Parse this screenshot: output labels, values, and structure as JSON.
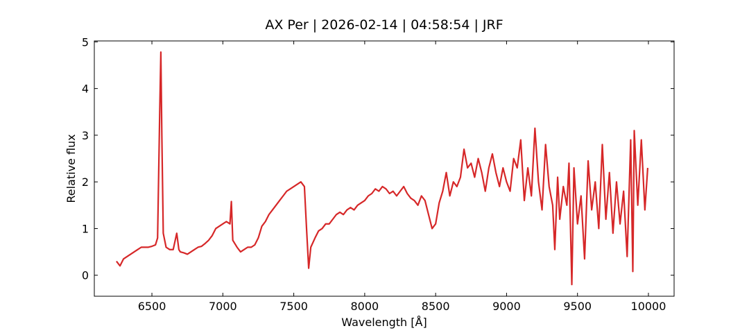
{
  "chart_data": {
    "type": "line",
    "title": "AX Per | 2026-02-14 | 04:58:54 | JRF",
    "x_label": "Wavelength [Å]",
    "y_label": "Relative flux",
    "xlim": [
      6094,
      10181
    ],
    "ylim": [
      -0.45,
      5.02
    ],
    "xticks": [
      6500,
      7000,
      7500,
      8000,
      8500,
      9000,
      9500,
      10000
    ],
    "yticks": [
      0,
      1,
      2,
      3,
      4,
      5
    ],
    "x": [
      6250,
      6275,
      6300,
      6325,
      6350,
      6375,
      6400,
      6425,
      6450,
      6475,
      6500,
      6525,
      6540,
      6555,
      6563,
      6570,
      6580,
      6600,
      6625,
      6650,
      6675,
      6690,
      6700,
      6725,
      6750,
      6775,
      6800,
      6825,
      6850,
      6875,
      6900,
      6925,
      6950,
      6975,
      7000,
      7025,
      7050,
      7060,
      7070,
      7100,
      7125,
      7150,
      7175,
      7200,
      7225,
      7250,
      7275,
      7300,
      7325,
      7350,
      7375,
      7400,
      7425,
      7450,
      7475,
      7500,
      7525,
      7550,
      7575,
      7590,
      7605,
      7620,
      7650,
      7675,
      7700,
      7725,
      7750,
      7775,
      7800,
      7825,
      7850,
      7875,
      7900,
      7925,
      7950,
      7975,
      8000,
      8025,
      8050,
      8075,
      8100,
      8125,
      8150,
      8175,
      8200,
      8225,
      8250,
      8275,
      8300,
      8325,
      8350,
      8375,
      8400,
      8425,
      8450,
      8475,
      8500,
      8525,
      8550,
      8575,
      8600,
      8625,
      8650,
      8675,
      8700,
      8725,
      8750,
      8775,
      8800,
      8825,
      8850,
      8875,
      8900,
      8925,
      8950,
      8975,
      9000,
      9025,
      9050,
      9075,
      9100,
      9125,
      9150,
      9175,
      9200,
      9225,
      9250,
      9275,
      9300,
      9325,
      9340,
      9360,
      9375,
      9400,
      9425,
      9440,
      9460,
      9475,
      9500,
      9525,
      9550,
      9575,
      9600,
      9625,
      9650,
      9675,
      9700,
      9725,
      9750,
      9775,
      9800,
      9825,
      9850,
      9875,
      9890,
      9900,
      9925,
      9950,
      9975,
      9995
    ],
    "series": [
      {
        "name": "flux",
        "color": "#d62728",
        "values": [
          0.3,
          0.2,
          0.35,
          0.4,
          0.45,
          0.5,
          0.55,
          0.6,
          0.6,
          0.6,
          0.62,
          0.65,
          0.8,
          3.5,
          4.78,
          3.0,
          0.9,
          0.6,
          0.55,
          0.55,
          0.9,
          0.55,
          0.5,
          0.48,
          0.45,
          0.5,
          0.55,
          0.6,
          0.62,
          0.68,
          0.75,
          0.85,
          1.0,
          1.05,
          1.1,
          1.15,
          1.1,
          1.58,
          0.75,
          0.6,
          0.5,
          0.55,
          0.6,
          0.6,
          0.65,
          0.8,
          1.05,
          1.15,
          1.3,
          1.4,
          1.5,
          1.6,
          1.7,
          1.8,
          1.85,
          1.9,
          1.95,
          2.0,
          1.9,
          1.0,
          0.15,
          0.6,
          0.8,
          0.95,
          1.0,
          1.1,
          1.1,
          1.2,
          1.3,
          1.35,
          1.3,
          1.4,
          1.45,
          1.4,
          1.5,
          1.55,
          1.6,
          1.7,
          1.75,
          1.85,
          1.8,
          1.9,
          1.85,
          1.75,
          1.8,
          1.7,
          1.8,
          1.9,
          1.75,
          1.65,
          1.6,
          1.5,
          1.7,
          1.6,
          1.3,
          1.0,
          1.1,
          1.55,
          1.8,
          2.2,
          1.7,
          2.0,
          1.9,
          2.1,
          2.7,
          2.3,
          2.4,
          2.1,
          2.5,
          2.2,
          1.8,
          2.3,
          2.6,
          2.2,
          1.9,
          2.3,
          2.0,
          1.8,
          2.5,
          2.3,
          2.9,
          1.6,
          2.3,
          1.7,
          3.15,
          2.0,
          1.4,
          2.8,
          1.9,
          1.5,
          0.55,
          2.1,
          1.2,
          1.9,
          1.5,
          2.4,
          -0.2,
          2.3,
          1.1,
          1.7,
          0.35,
          2.45,
          1.4,
          2.0,
          1.0,
          2.8,
          1.2,
          2.2,
          0.9,
          2.0,
          1.1,
          1.8,
          0.4,
          2.9,
          0.08,
          3.1,
          1.5,
          2.9,
          1.4,
          2.3
        ]
      }
    ]
  }
}
